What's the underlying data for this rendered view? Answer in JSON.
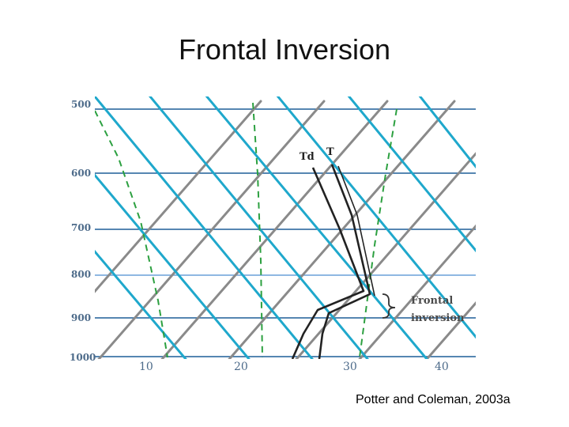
{
  "slide": {
    "title": "Frontal Inversion",
    "credit": "Potter and Coleman, 2003a"
  },
  "skewt": {
    "pressure_labels": [
      "500",
      "600",
      "700",
      "800",
      "900",
      "1000"
    ],
    "temperature_labels": [
      "10",
      "20",
      "30",
      "40"
    ],
    "curve_labels": {
      "dewpoint": "Td",
      "temperature": "T"
    },
    "annotation": [
      "Frontal",
      "inversion"
    ],
    "colors": {
      "isobar": "#1f5f99",
      "isotherm": "#8a8a8a",
      "dry_adiabat": "#1fa8cc",
      "mixing_ratio": "#2ca040",
      "sounding": "#222222"
    }
  }
}
